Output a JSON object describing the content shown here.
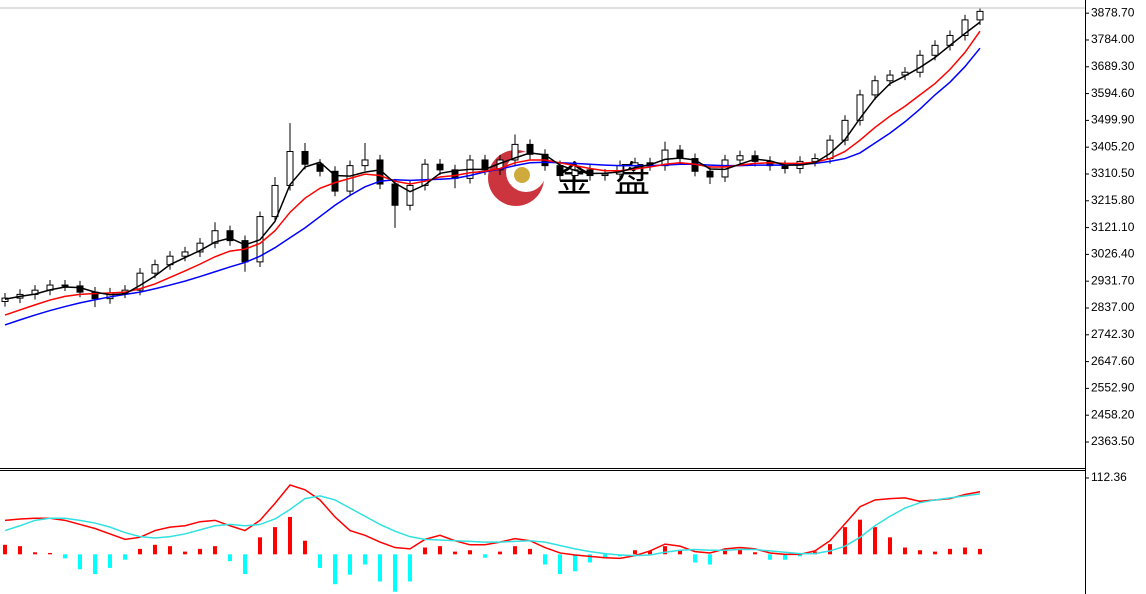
{
  "chart_data": [
    {
      "type": "candlestick",
      "watermark": "金盘",
      "open": [
        2860,
        2872,
        2885,
        2900,
        2918,
        2915,
        2893,
        2870,
        2890,
        2900,
        2960,
        2990,
        3020,
        3035,
        3066,
        3110,
        3075,
        3000,
        3160,
        3270,
        3390,
        3345,
        3320,
        3250,
        3340,
        3360,
        3275,
        3200,
        3270,
        3345,
        3325,
        3295,
        3360,
        3325,
        3360,
        3415,
        3380,
        3340,
        3305,
        3325,
        3305,
        3310,
        3340,
        3350,
        3340,
        3395,
        3365,
        3320,
        3300,
        3360,
        3375,
        3355,
        3340,
        3330,
        3355,
        3365,
        3430,
        3500,
        3590,
        3640,
        3660,
        3670,
        3730,
        3765,
        3800,
        3855
      ],
      "high": [
        2890,
        2903,
        2918,
        2936,
        2936,
        2933,
        2911,
        2908,
        2918,
        2978,
        3008,
        3038,
        3053,
        3084,
        3140,
        3128,
        3093,
        3178,
        3300,
        3490,
        3420,
        3363,
        3338,
        3358,
        3420,
        3378,
        3293,
        3288,
        3363,
        3363,
        3343,
        3378,
        3378,
        3378,
        3450,
        3433,
        3398,
        3358,
        3343,
        3343,
        3328,
        3358,
        3368,
        3368,
        3425,
        3413,
        3383,
        3338,
        3378,
        3393,
        3393,
        3373,
        3358,
        3373,
        3383,
        3448,
        3518,
        3608,
        3658,
        3678,
        3688,
        3748,
        3783,
        3818,
        3873,
        3895
      ],
      "low": [
        2842,
        2854,
        2867,
        2882,
        2897,
        2875,
        2840,
        2852,
        2872,
        2882,
        2942,
        2972,
        3002,
        3017,
        3048,
        3057,
        2965,
        2982,
        3142,
        3252,
        3327,
        3302,
        3232,
        3232,
        3322,
        3257,
        3120,
        3182,
        3252,
        3307,
        3260,
        3277,
        3307,
        3307,
        3342,
        3362,
        3322,
        3287,
        3287,
        3287,
        3287,
        3292,
        3322,
        3322,
        3322,
        3347,
        3302,
        3275,
        3282,
        3342,
        3337,
        3322,
        3312,
        3312,
        3337,
        3347,
        3412,
        3482,
        3572,
        3622,
        3642,
        3652,
        3712,
        3747,
        3782,
        3837
      ],
      "close": [
        2872,
        2885,
        2900,
        2918,
        2915,
        2893,
        2870,
        2890,
        2900,
        2960,
        2990,
        3020,
        3035,
        3066,
        3110,
        3075,
        3000,
        3160,
        3270,
        3390,
        3345,
        3320,
        3250,
        3340,
        3360,
        3275,
        3200,
        3270,
        3345,
        3325,
        3295,
        3360,
        3325,
        3360,
        3415,
        3380,
        3340,
        3305,
        3325,
        3305,
        3310,
        3340,
        3350,
        3340,
        3395,
        3365,
        3320,
        3300,
        3360,
        3375,
        3355,
        3340,
        3330,
        3355,
        3365,
        3430,
        3500,
        3590,
        3640,
        3660,
        3670,
        3730,
        3765,
        3800,
        3855,
        3885
      ],
      "series": [
        {
          "color": "#0000ff",
          "values": [
            2777,
            2795,
            2812,
            2828,
            2842,
            2855,
            2866,
            2876,
            2885,
            2893,
            2905,
            2918,
            2932,
            2948,
            2965,
            2982,
            2998,
            3020,
            3050,
            3085,
            3120,
            3160,
            3200,
            3235,
            3265,
            3285,
            3290,
            3288,
            3290,
            3292,
            3295,
            3305,
            3318,
            3328,
            3340,
            3350,
            3352,
            3350,
            3348,
            3345,
            3342,
            3340,
            3340,
            3340,
            3342,
            3345,
            3345,
            3342,
            3340,
            3340,
            3342,
            3342,
            3342,
            3344,
            3348,
            3355,
            3365,
            3385,
            3420,
            3455,
            3495,
            3540,
            3590,
            3635,
            3690,
            3755
          ]
        },
        {
          "color": "#ff0000",
          "values": [
            2812,
            2830,
            2848,
            2865,
            2878,
            2885,
            2888,
            2890,
            2893,
            2905,
            2922,
            2945,
            2968,
            2992,
            3018,
            3038,
            3045,
            3065,
            3110,
            3175,
            3225,
            3260,
            3280,
            3295,
            3310,
            3305,
            3285,
            3275,
            3285,
            3300,
            3305,
            3315,
            3320,
            3330,
            3350,
            3360,
            3360,
            3350,
            3340,
            3330,
            3322,
            3322,
            3328,
            3335,
            3345,
            3350,
            3345,
            3335,
            3335,
            3342,
            3348,
            3350,
            3348,
            3348,
            3352,
            3365,
            3390,
            3430,
            3475,
            3515,
            3550,
            3590,
            3630,
            3680,
            3740,
            3815
          ]
        },
        {
          "color": "#000000",
          "values": [
            2868,
            2878,
            2886,
            2901,
            2911,
            2909,
            2893,
            2884,
            2887,
            2917,
            2950,
            2990,
            3015,
            3040,
            3070,
            3084,
            3060,
            3078,
            3143,
            3273,
            3335,
            3352,
            3305,
            3303,
            3317,
            3325,
            3278,
            3248,
            3272,
            3313,
            3322,
            3327,
            3327,
            3348,
            3367,
            3385,
            3378,
            3342,
            3323,
            3312,
            3313,
            3318,
            3333,
            3343,
            3362,
            3367,
            3360,
            3328,
            3327,
            3345,
            3363,
            3357,
            3342,
            3342,
            3350,
            3383,
            3432,
            3507,
            3577,
            3630,
            3657,
            3687,
            3722,
            3765,
            3807,
            3847
          ]
        }
      ],
      "ylim": [
        2271.6,
        3897
      ],
      "yticks": [
        {
          "value": 3878.7,
          "label": "3878.70"
        },
        {
          "value": 3784,
          "label": "3784.00"
        },
        {
          "value": 3689.3,
          "label": "3689.30"
        },
        {
          "value": 3594.6,
          "label": "3594.60"
        },
        {
          "value": 3499.9,
          "label": "3499.90"
        },
        {
          "value": 3405.2,
          "label": "3405.20"
        },
        {
          "value": 3310.5,
          "label": "3310.50"
        },
        {
          "value": 3215.8,
          "label": "3215.80"
        },
        {
          "value": 3121.1,
          "label": "3121.10"
        },
        {
          "value": 3026.4,
          "label": "3026.40"
        },
        {
          "value": 2931.7,
          "label": "2931.70"
        },
        {
          "value": 2837,
          "label": "2837.00"
        },
        {
          "value": 2742.3,
          "label": "2742.30"
        },
        {
          "value": 2647.6,
          "label": "2647.60"
        },
        {
          "value": 2552.9,
          "label": "2552.90"
        },
        {
          "value": 2458.2,
          "label": "2458.20"
        },
        {
          "value": 2363.5,
          "label": "2363.50"
        }
      ]
    },
    {
      "type": "macd",
      "values": [
        14,
        12,
        3,
        2,
        -6,
        -22,
        -29,
        -20,
        -8,
        8,
        14,
        12,
        4,
        8,
        12,
        -10,
        -29,
        25,
        40,
        55,
        20,
        -20,
        -44,
        -30,
        -15,
        -40,
        -55,
        -40,
        10,
        12,
        4,
        6,
        -5,
        4,
        12,
        8,
        -15,
        -29,
        -25,
        -12,
        -6,
        -3,
        6,
        5,
        12,
        6,
        -12,
        -15,
        6,
        8,
        3,
        -8,
        -8,
        -3,
        4,
        15,
        40,
        51,
        40,
        25,
        10,
        6,
        4,
        8,
        10,
        8
      ],
      "up_color": "#ff0000",
      "down_color": "#00ffff",
      "series": [
        {
          "color": "#ff0000",
          "values": [
            50,
            52,
            53,
            53,
            50,
            44,
            38,
            30,
            22,
            25,
            35,
            40,
            42,
            48,
            50,
            42,
            35,
            50,
            75,
            102,
            95,
            80,
            55,
            35,
            28,
            18,
            10,
            8,
            22,
            28,
            20,
            14,
            14,
            18,
            23,
            20,
            10,
            2,
            -1,
            -3,
            -5,
            -6,
            -2,
            5,
            15,
            12,
            4,
            2,
            8,
            10,
            8,
            2,
            0,
            0,
            5,
            20,
            45,
            70,
            80,
            82,
            83,
            78,
            80,
            82,
            88,
            92
          ]
        },
        {
          "color": "#33e0e0",
          "values": [
            35,
            42,
            50,
            53,
            53,
            50,
            46,
            40,
            32,
            26,
            24,
            26,
            30,
            36,
            42,
            44,
            42,
            44,
            52,
            66,
            82,
            86,
            80,
            68,
            56,
            44,
            34,
            26,
            22,
            21,
            20,
            19,
            18,
            18,
            19,
            20,
            18,
            13,
            8,
            4,
            1,
            -1,
            -2,
            -1,
            3,
            6,
            7,
            6,
            6,
            7,
            7,
            5,
            3,
            1,
            1,
            5,
            12,
            25,
            42,
            56,
            68,
            76,
            80,
            83,
            86,
            89
          ]
        }
      ],
      "ylim": [
        -58.4,
        122.6
      ],
      "yticks": [
        112.36
      ]
    }
  ]
}
